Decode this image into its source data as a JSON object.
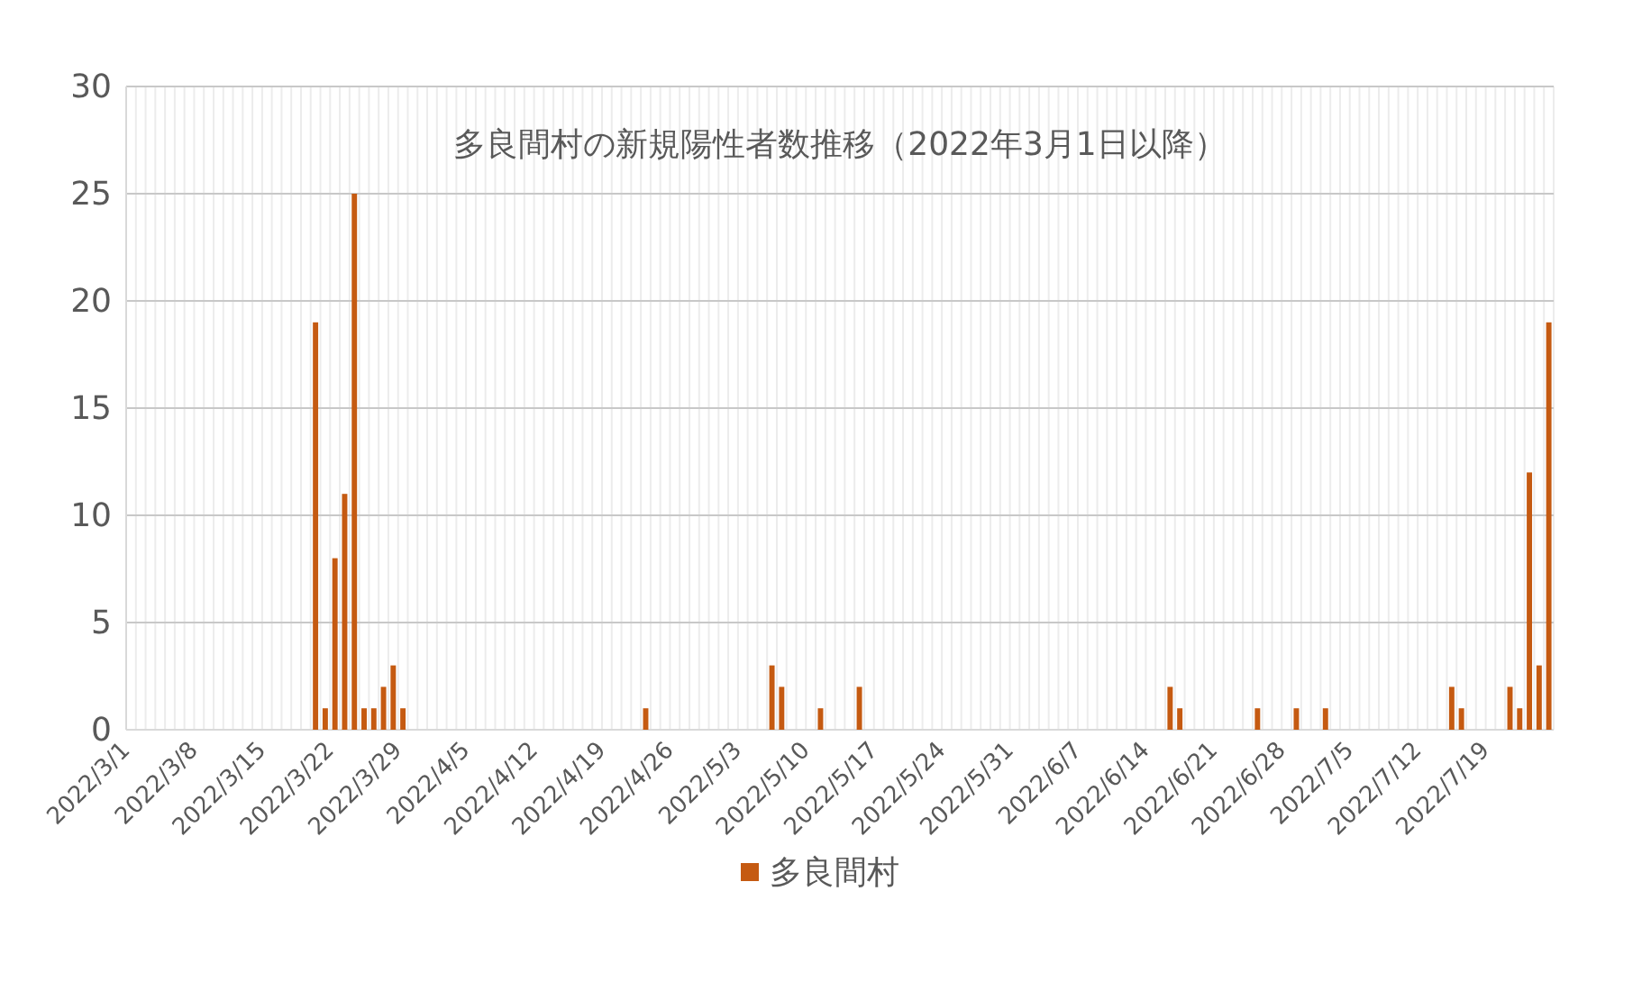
{
  "chart_data": {
    "type": "bar",
    "title": "多良間村の新規陽性者数推移（2022年3月1日以降）",
    "categories": [
      "2022/3/1",
      null,
      null,
      null,
      null,
      null,
      null,
      "2022/3/8",
      null,
      null,
      null,
      null,
      null,
      null,
      "2022/3/15",
      null,
      null,
      null,
      null,
      null,
      null,
      "2022/3/22",
      null,
      null,
      null,
      null,
      null,
      null,
      "2022/3/29",
      null,
      null,
      null,
      null,
      null,
      null,
      "2022/4/5",
      null,
      null,
      null,
      null,
      null,
      null,
      "2022/4/12",
      null,
      null,
      null,
      null,
      null,
      null,
      "2022/4/19",
      null,
      null,
      null,
      null,
      null,
      null,
      "2022/4/26",
      null,
      null,
      null,
      null,
      null,
      null,
      "2022/5/3",
      null,
      null,
      null,
      null,
      null,
      null,
      "2022/5/10",
      null,
      null,
      null,
      null,
      null,
      null,
      "2022/5/17",
      null,
      null,
      null,
      null,
      null,
      null,
      "2022/5/24",
      null,
      null,
      null,
      null,
      null,
      null,
      "2022/5/31",
      null,
      null,
      null,
      null,
      null,
      null,
      "2022/6/7",
      null,
      null,
      null,
      null,
      null,
      null,
      "2022/6/14",
      null,
      null,
      null,
      null,
      null,
      null,
      "2022/6/21",
      null,
      null,
      null,
      null,
      null,
      null,
      "2022/6/28",
      null,
      null,
      null,
      null,
      null,
      null,
      "2022/7/5",
      null,
      null,
      null,
      null,
      null,
      null,
      "2022/7/12",
      null,
      null,
      null,
      null,
      null,
      null,
      "2022/7/19",
      null,
      null,
      null,
      null,
      null,
      null
    ],
    "series": [
      {
        "name": "多良間村",
        "color": "#c55a11",
        "values": [
          0,
          0,
          0,
          0,
          0,
          0,
          0,
          0,
          0,
          0,
          0,
          0,
          0,
          0,
          0,
          0,
          0,
          0,
          0,
          19,
          1,
          8,
          11,
          25,
          1,
          1,
          2,
          3,
          1,
          0,
          0,
          0,
          0,
          0,
          0,
          0,
          0,
          0,
          0,
          0,
          0,
          0,
          0,
          0,
          0,
          0,
          0,
          0,
          0,
          0,
          0,
          0,
          0,
          1,
          0,
          0,
          0,
          0,
          0,
          0,
          0,
          0,
          0,
          0,
          0,
          0,
          3,
          2,
          0,
          0,
          0,
          1,
          0,
          0,
          0,
          2,
          0,
          0,
          0,
          0,
          0,
          0,
          0,
          0,
          0,
          0,
          0,
          0,
          0,
          0,
          0,
          0,
          0,
          0,
          0,
          0,
          0,
          0,
          0,
          0,
          0,
          0,
          0,
          0,
          0,
          0,
          0,
          2,
          1,
          0,
          0,
          0,
          0,
          0,
          0,
          0,
          1,
          0,
          0,
          0,
          1,
          0,
          0,
          1,
          0,
          0,
          0,
          0,
          0,
          0,
          0,
          0,
          0,
          0,
          0,
          0,
          2,
          1,
          0,
          0,
          0,
          0,
          2,
          1,
          12,
          3,
          19
        ]
      }
    ],
    "ylim": [
      0,
      30
    ],
    "yticks": [
      0,
      5,
      10,
      15,
      20,
      25,
      30
    ],
    "grid": true,
    "legend": "bottom"
  }
}
